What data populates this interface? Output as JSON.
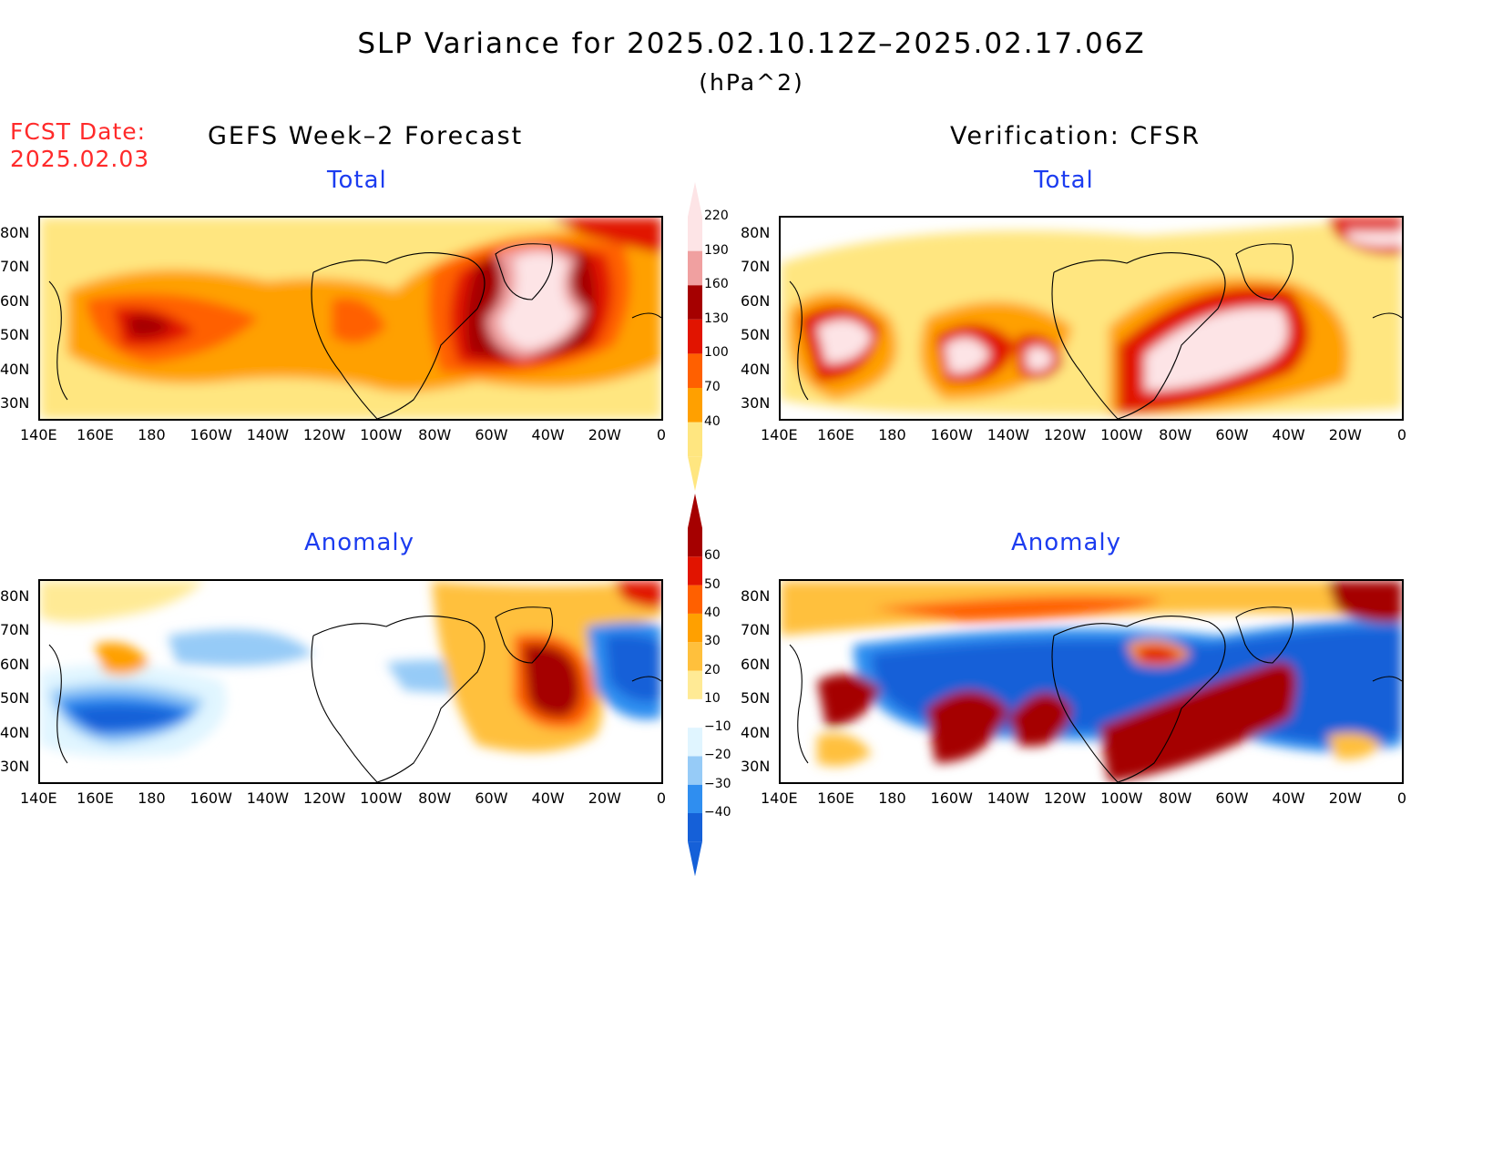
{
  "title": "SLP Variance for 2025.02.10.12Z–2025.02.17.06Z",
  "units": "(hPa^2)",
  "fcst_date": {
    "label": "FCST Date:",
    "value": "2025.02.03"
  },
  "columns": {
    "left": "GEFS Week–2 Forecast",
    "right": "Verification: CFSR"
  },
  "panel_titles": {
    "total": "Total",
    "anomaly": "Anomaly"
  },
  "lat_labels": [
    "80N",
    "70N",
    "60N",
    "50N",
    "40N",
    "30N"
  ],
  "lon_labels": [
    "140E",
    "160E",
    "180",
    "160W",
    "140W",
    "120W",
    "100W",
    "80W",
    "60W",
    "40W",
    "20W",
    "0"
  ],
  "colorbar_total": {
    "levels": [
      "40",
      "70",
      "100",
      "130",
      "160",
      "190",
      "220"
    ],
    "colors": [
      "#ffe680",
      "#ffa000",
      "#ff6000",
      "#e11400",
      "#a50000",
      "#f0a0a0",
      "#fde4e6"
    ]
  },
  "colorbar_anomaly": {
    "levels": [
      "−40",
      "−30",
      "−20",
      "−10",
      "10",
      "20",
      "30",
      "40",
      "50",
      "60"
    ],
    "colors": [
      "#1560d8",
      "#2f8ef0",
      "#96cbf7",
      "#e0f5ff",
      "#ffffff",
      "#ffea95",
      "#ffc03c",
      "#ffa000",
      "#ff6000",
      "#e11400",
      "#a50000"
    ]
  },
  "colors": {
    "title_blue": "#1c3cf0",
    "fcst_red": "#ff2a2a"
  }
}
